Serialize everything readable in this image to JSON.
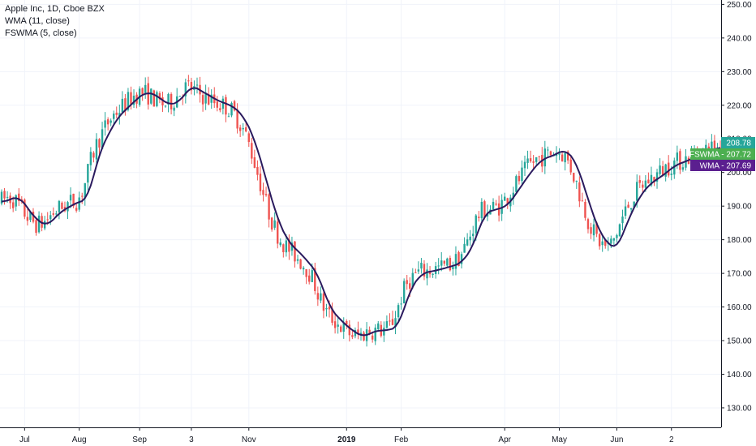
{
  "legend": {
    "title": "Apple Inc, 1D, Cboe BZX",
    "wma": "WMA (11, close)",
    "fswma": "FSWMA (5, close)"
  },
  "colors": {
    "up": "#26a69a",
    "down": "#ef5350",
    "wma_line": "#2a1a5e",
    "tag_last": "#26a69a",
    "tag_fswma": "#4caf50",
    "tag_wma": "#5b1f8f",
    "grid": "#f0f3fa",
    "axis": "#131722"
  },
  "chart_data": {
    "type": "line",
    "y_ticks": [
      "130.00",
      "140.00",
      "150.00",
      "160.00",
      "170.00",
      "180.00",
      "190.00",
      "200.00",
      "210.00",
      "220.00",
      "230.00",
      "240.00",
      "250.00"
    ],
    "y_tick_values": [
      130,
      140,
      150,
      160,
      170,
      180,
      190,
      200,
      210,
      220,
      230,
      240,
      250
    ],
    "ylim": [
      124.2,
      251.3
    ],
    "x_ticks": [
      {
        "label": "Jul",
        "index": 8,
        "bold": false
      },
      {
        "label": "Aug",
        "index": 27,
        "bold": false
      },
      {
        "label": "Sep",
        "index": 48,
        "bold": false
      },
      {
        "label": "3",
        "index": 66,
        "bold": false
      },
      {
        "label": "Nov",
        "index": 86,
        "bold": false
      },
      {
        "label": "2019",
        "index": 120,
        "bold": true
      },
      {
        "label": "Feb",
        "index": 139,
        "bold": false
      },
      {
        "label": "Apr",
        "index": 175,
        "bold": false
      },
      {
        "label": "May",
        "index": 194,
        "bold": false
      },
      {
        "label": "Jun",
        "index": 214,
        "bold": false
      },
      {
        "label": "2",
        "index": 233,
        "bold": false
      }
    ],
    "n_bars": 251,
    "wma_anchors": [
      [
        0,
        191
      ],
      [
        6,
        193
      ],
      [
        12,
        186
      ],
      [
        16,
        184
      ],
      [
        20,
        188
      ],
      [
        26,
        191
      ],
      [
        30,
        192
      ],
      [
        34,
        206
      ],
      [
        40,
        216
      ],
      [
        46,
        221
      ],
      [
        50,
        224
      ],
      [
        54,
        223
      ],
      [
        58,
        220
      ],
      [
        62,
        221
      ],
      [
        66,
        226
      ],
      [
        70,
        224
      ],
      [
        76,
        221
      ],
      [
        80,
        220
      ],
      [
        84,
        217
      ],
      [
        88,
        210
      ],
      [
        92,
        198
      ],
      [
        96,
        186
      ],
      [
        100,
        179
      ],
      [
        104,
        176
      ],
      [
        110,
        170
      ],
      [
        114,
        160
      ],
      [
        118,
        156
      ],
      [
        122,
        153
      ],
      [
        126,
        151
      ],
      [
        130,
        153
      ],
      [
        134,
        153
      ],
      [
        138,
        154
      ],
      [
        142,
        165
      ],
      [
        146,
        170
      ],
      [
        152,
        171
      ],
      [
        156,
        172
      ],
      [
        160,
        173
      ],
      [
        164,
        178
      ],
      [
        168,
        188
      ],
      [
        172,
        189
      ],
      [
        176,
        190
      ],
      [
        180,
        195
      ],
      [
        184,
        200
      ],
      [
        188,
        204
      ],
      [
        192,
        205
      ],
      [
        196,
        207
      ],
      [
        200,
        203
      ],
      [
        204,
        192
      ],
      [
        208,
        182
      ],
      [
        212,
        178
      ],
      [
        214,
        177
      ],
      [
        218,
        186
      ],
      [
        222,
        193
      ],
      [
        226,
        197
      ],
      [
        230,
        199
      ],
      [
        234,
        202
      ],
      [
        240,
        204
      ],
      [
        250,
        207.7
      ]
    ],
    "last_price": "208.78",
    "fswma_value": "207.72",
    "wma_value": "207.69",
    "last_price_num": 208.78,
    "fswma_num": 207.72,
    "wma_num": 207.69,
    "tag_fswma_label": "FSWMA",
    "tag_wma_label": "WMA"
  }
}
